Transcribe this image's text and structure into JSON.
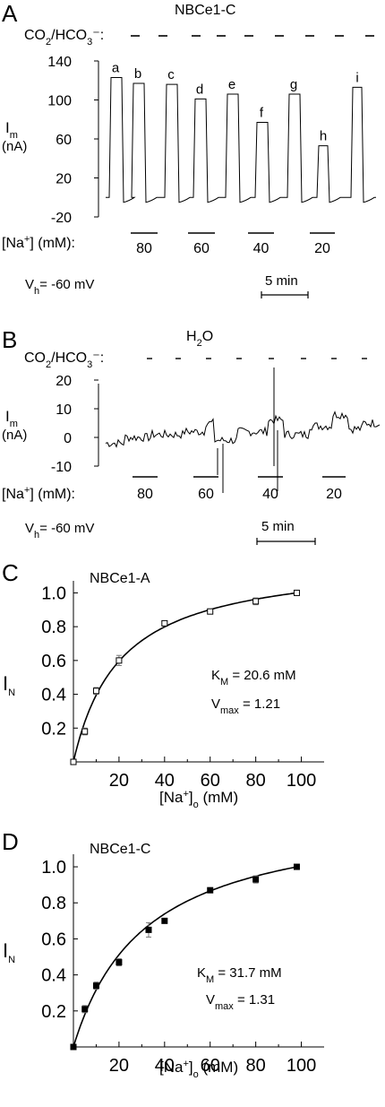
{
  "panels": {
    "A": {
      "label": "A",
      "title": "NBCe1-C",
      "co2_label": "CO2/HCO3⁻:",
      "ylabel": "Im",
      "yunit": "(nA)",
      "yticks": [
        "140",
        "100",
        "60",
        "20",
        "-20"
      ],
      "peaks": [
        "a",
        "b",
        "c",
        "d",
        "e",
        "f",
        "g",
        "h",
        "i"
      ],
      "na_label": "[Na⁺] (mM):",
      "na_values": [
        "80",
        "60",
        "40",
        "20"
      ],
      "vh": "Vh= -60 mV",
      "scale": "5 min"
    },
    "B": {
      "label": "B",
      "title": "H2O",
      "co2_label": "CO2/HCO3⁻:",
      "ylabel": "Im",
      "yunit": "(nA)",
      "yticks": [
        "20",
        "10",
        "0",
        "-10"
      ],
      "na_label": "[Na⁺] (mM):",
      "na_values": [
        "80",
        "60",
        "40",
        "20"
      ],
      "vh": "Vh= -60 mV",
      "scale": "5 min"
    },
    "C": {
      "label": "C",
      "title": "NBCe1-A",
      "ylabel": "IN",
      "xlabel": "[Na⁺]o (mM)",
      "km": "KM = 20.6 mM",
      "vmax": "Vmax = 1.21"
    },
    "D": {
      "label": "D",
      "title": "NBCe1-C",
      "ylabel": "IN",
      "xlabel": "[Na⁺]o (mM)",
      "km": "KM = 31.7 mM",
      "vmax": "Vmax = 1.31"
    }
  },
  "chart_data": [
    {
      "type": "line",
      "panel": "A",
      "title": "NBCe1-C",
      "ylabel": "Im (nA)",
      "ylim": [
        -20,
        140
      ],
      "yticks": [
        140,
        100,
        60,
        20,
        -20
      ],
      "peak_labels": [
        "a",
        "b",
        "c",
        "d",
        "e",
        "f",
        "g",
        "h",
        "i"
      ],
      "peak_values": [
        123,
        117,
        116,
        101,
        106,
        77,
        106,
        53,
        113
      ],
      "na_mM": [
        80,
        60,
        40,
        20
      ]
    },
    {
      "type": "line",
      "panel": "B",
      "title": "H2O",
      "ylabel": "Im (nA)",
      "ylim": [
        -10,
        20
      ],
      "yticks": [
        20,
        10,
        0,
        -10
      ],
      "na_mM": [
        80,
        60,
        40,
        20
      ]
    },
    {
      "type": "scatter",
      "panel": "C",
      "title": "NBCe1-A",
      "xlabel": "[Na+]o (mM)",
      "ylabel": "IN",
      "xlim": [
        0,
        110
      ],
      "ylim": [
        0,
        1.05
      ],
      "xticks": [
        20,
        40,
        60,
        80,
        100
      ],
      "yticks": [
        0.2,
        0.4,
        0.6,
        0.8,
        1.0
      ],
      "marker": "open-square",
      "km": 20.6,
      "vmax": 1.21,
      "points": [
        {
          "x": 0,
          "y": 0.0,
          "err": 0.0
        },
        {
          "x": 5,
          "y": 0.18,
          "err": 0.02
        },
        {
          "x": 10,
          "y": 0.42,
          "err": 0.02
        },
        {
          "x": 20,
          "y": 0.6,
          "err": 0.03
        },
        {
          "x": 40,
          "y": 0.82,
          "err": 0.01
        },
        {
          "x": 60,
          "y": 0.89,
          "err": 0.01
        },
        {
          "x": 80,
          "y": 0.95,
          "err": 0.02
        },
        {
          "x": 98,
          "y": 1.0,
          "err": 0.0
        }
      ]
    },
    {
      "type": "scatter",
      "panel": "D",
      "title": "NBCe1-C",
      "xlabel": "[Na+]o (mM)",
      "ylabel": "IN",
      "xlim": [
        0,
        110
      ],
      "ylim": [
        0,
        1.05
      ],
      "xticks": [
        20,
        40,
        60,
        80,
        100
      ],
      "yticks": [
        0.2,
        0.4,
        0.6,
        0.8,
        1.0
      ],
      "marker": "filled-square",
      "km": 31.7,
      "vmax": 1.31,
      "points": [
        {
          "x": 0,
          "y": 0.0,
          "err": 0.0
        },
        {
          "x": 5,
          "y": 0.21,
          "err": 0.02
        },
        {
          "x": 10,
          "y": 0.34,
          "err": 0.02
        },
        {
          "x": 20,
          "y": 0.47,
          "err": 0.02
        },
        {
          "x": 33,
          "y": 0.65,
          "err": 0.04
        },
        {
          "x": 40,
          "y": 0.7,
          "err": 0.01
        },
        {
          "x": 60,
          "y": 0.87,
          "err": 0.01
        },
        {
          "x": 80,
          "y": 0.93,
          "err": 0.02
        },
        {
          "x": 98,
          "y": 1.0,
          "err": 0.0
        }
      ]
    }
  ]
}
